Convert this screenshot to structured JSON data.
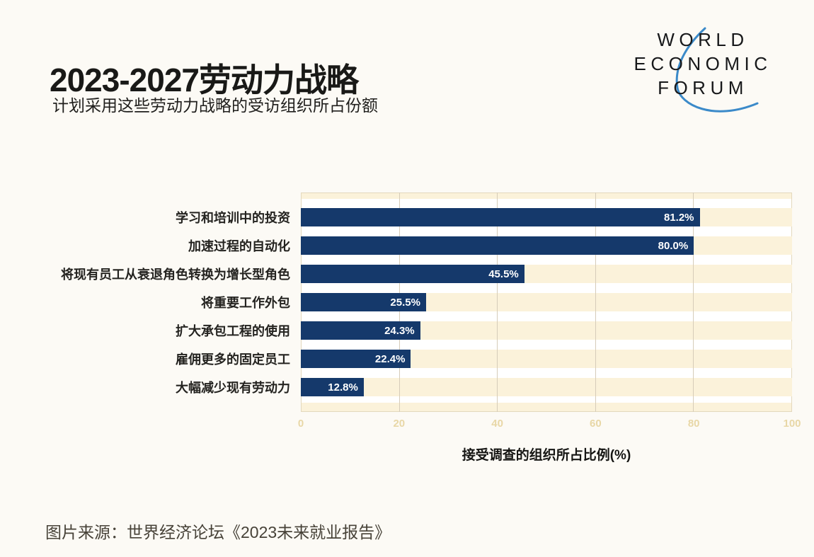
{
  "header": {
    "title": "2023-2027劳动力战略",
    "subtitle": "计划采用这些劳动力战略的受访组织所占份额"
  },
  "logo": {
    "lines": [
      "WORLD",
      "ECONOMIC",
      "FORUM"
    ],
    "arc_color": "#3b8ac9",
    "text_color": "#17181a"
  },
  "chart_data": {
    "type": "bar",
    "orientation": "horizontal",
    "categories": [
      "学习和培训中的投资",
      "加速过程的自动化",
      "将现有员工从衰退角色转换为增长型角色",
      "将重要工作外包",
      "扩大承包工程的使用",
      "雇佣更多的固定员工",
      "大幅减少现有劳动力"
    ],
    "values": [
      81.2,
      80.0,
      45.5,
      25.5,
      24.3,
      22.4,
      12.8
    ],
    "value_labels": [
      "81.2%",
      "80.0%",
      "45.5%",
      "25.5%",
      "24.3%",
      "22.4%",
      "12.8%"
    ],
    "xlabel": "接受调查的组织所占比例(%)",
    "xlim": [
      0,
      100
    ],
    "x_ticks": [
      0,
      20,
      40,
      60,
      80,
      100
    ],
    "grid": true,
    "legend": false,
    "bar_color": "#15396b",
    "track_color": "#fbf2da",
    "gridline_color": "#d6ccb9",
    "tick_color": "#e8d7a6",
    "value_label_color": "#ffffff"
  },
  "footer": {
    "source": "图片来源：世界经济论坛《2023未来就业报告》"
  }
}
